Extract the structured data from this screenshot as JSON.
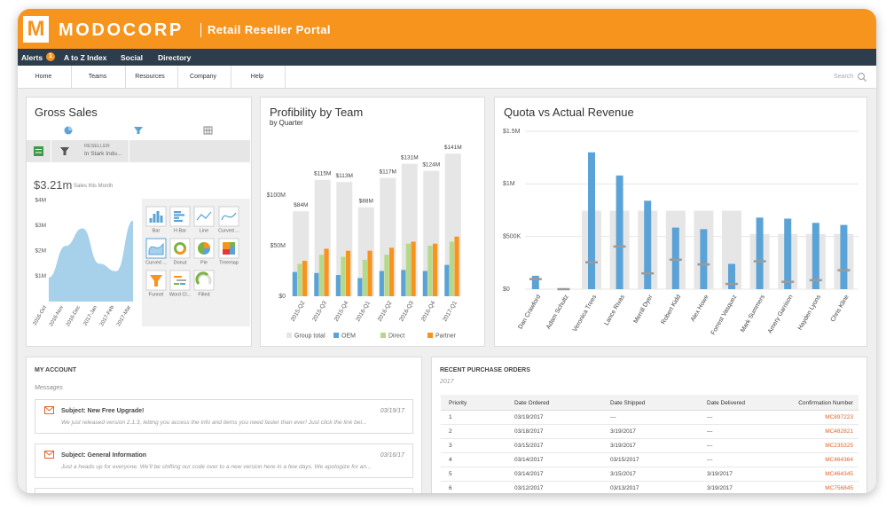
{
  "header": {
    "logo": "M",
    "brand": "MODOCORP",
    "portal": "Retail Reseller Portal"
  },
  "topnav": {
    "items": [
      "Alerts",
      "A to Z Index",
      "Social",
      "Directory"
    ],
    "alert_count": "1"
  },
  "menu": {
    "items": [
      "Home",
      "Teams",
      "Resources",
      "Company",
      "Help"
    ],
    "search": "Search"
  },
  "gross_sales": {
    "title": "Gross Sales",
    "filter_label": "RESELLER",
    "filter_value": "In Stark Indu...",
    "amount": "$3.21m",
    "amount_caption": "Sales this Month",
    "chart_types": [
      "Bar",
      "H Bar",
      "Line",
      "Curved ...",
      "Curved ...",
      "Donut",
      "Pie",
      "Treemap",
      "Funnel",
      "Word Cl...",
      "Filled"
    ]
  },
  "chart_data": [
    {
      "type": "area",
      "categories": [
        "2016-Oct",
        "2016-Nov",
        "2016-Dec",
        "2017-Jan",
        "2017-Feb",
        "2017-Mar"
      ],
      "values": [
        0.95,
        2.2,
        2.9,
        1.5,
        1.2,
        3.2
      ],
      "color": "#a7d0ea",
      "ylim": [
        0,
        4
      ],
      "yticks": [
        {
          "value": 1,
          "label": "$1M"
        },
        {
          "value": 2,
          "label": "$2M"
        },
        {
          "value": 3,
          "label": "$3M"
        },
        {
          "value": 4,
          "label": "$4M"
        }
      ]
    },
    {
      "type": "bar",
      "title": "Profibility by Team",
      "subtitle": "by Quarter",
      "categories": [
        "2015-Q2",
        "2015-Q3",
        "2015-Q4",
        "2016-Q1",
        "2016-Q2",
        "2016-Q3",
        "2016-Q4",
        "2017-Q1"
      ],
      "series": [
        {
          "name": "Group total",
          "color": "#e6e6e6",
          "values": [
            84,
            115,
            113,
            88,
            117,
            131,
            124,
            141
          ],
          "value_labels": [
            "$84M",
            "$115M",
            "$113M",
            "$88M",
            "$117M",
            "$131M",
            "$124M",
            "$141M"
          ]
        },
        {
          "name": "OEM",
          "color": "#5ba3d6",
          "values": [
            24,
            23,
            21,
            18,
            25,
            26,
            25,
            31
          ]
        },
        {
          "name": "Direct",
          "color": "#b5d98a",
          "values": [
            32,
            41,
            39,
            36,
            41,
            52,
            50,
            54
          ]
        },
        {
          "name": "Partner",
          "color": "#f7941e",
          "values": [
            35,
            47,
            45,
            45,
            48,
            54,
            52,
            59
          ]
        }
      ],
      "ylim": [
        0,
        150
      ],
      "yticks": [
        {
          "value": 0,
          "label": "$0"
        },
        {
          "value": 50,
          "label": "$50M"
        },
        {
          "value": 100,
          "label": "$100M"
        }
      ]
    },
    {
      "type": "bullet",
      "title": "Quota vs Actual Revenue",
      "categories": [
        "Dan Crawford",
        "Adam Schultz",
        "Veronica Trees",
        "Lance Rivas",
        "Merrill Dyer",
        "Robert Kidd",
        "Alex Howe",
        "Forrest Vasquez",
        "Mark Summers",
        "Amery Garrison",
        "Hayden Lyons",
        "Chris Kline"
      ],
      "series": [
        {
          "color": "#e6e6e6",
          "values": [
            null,
            null,
            745000,
            745000,
            745000,
            745000,
            745000,
            745000,
            525000,
            525000,
            525000,
            525000
          ]
        },
        {
          "color": "#5ba3d6",
          "values": [
            127000,
            8000,
            1300000,
            1080000,
            840000,
            585000,
            570000,
            240000,
            680000,
            670000,
            630000,
            610000
          ]
        },
        {
          "color": "#9a9a9a",
          "values": [
            95000,
            0,
            255000,
            405000,
            150000,
            280000,
            235000,
            50000,
            265000,
            70000,
            85000,
            180000
          ]
        }
      ],
      "ylim": [
        0,
        1500000
      ],
      "grid": true,
      "yticks": [
        {
          "value": 0,
          "label": "$0"
        },
        {
          "value": 500000,
          "label": "$500K"
        },
        {
          "value": 1000000,
          "label": "$1M"
        },
        {
          "value": 1500000,
          "label": "$1.5M"
        }
      ]
    }
  ],
  "account": {
    "title": "MY ACCOUNT",
    "section": "Messages",
    "messages": [
      {
        "subject": "Subject: New Free Upgrade!",
        "date": "03/19/17",
        "body": "We just released version 2.1.3, letting you access the info and items you need faster than ever! Just click the link bel..."
      },
      {
        "subject": "Subject: General Information",
        "date": "03/16/17",
        "body": "Just a heads up for everyone. We'll be shifting our code over to a new version here in a few days. We apologize for an..."
      }
    ]
  },
  "orders": {
    "title": "RECENT PURCHASE ORDERS",
    "subtitle": "2017",
    "columns": [
      "Priority",
      "Date Ordered",
      "Date Shipped",
      "Date Delivered",
      "Confirmation Number"
    ],
    "rows": [
      [
        1,
        "03/19/2017",
        "---",
        "---",
        "MC897223"
      ],
      [
        2,
        "03/18/2017",
        "3/19/2017",
        "---",
        "MC482821"
      ],
      [
        3,
        "03/15/2017",
        "3/19/2017",
        "---",
        "MC235325"
      ],
      [
        4,
        "03/14/2017",
        "03/15/2017",
        "---",
        "MC464364"
      ],
      [
        5,
        "03/14/2017",
        "3/15/2017",
        "3/19/2017",
        "MC464345"
      ],
      [
        6,
        "03/12/2017",
        "03/13/2017",
        "3/19/2017",
        "MC756845"
      ]
    ]
  }
}
